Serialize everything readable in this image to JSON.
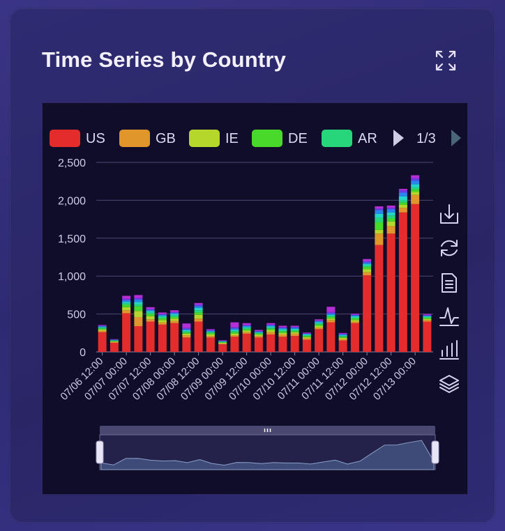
{
  "card": {
    "title": "Time Series by Country",
    "expand_icon": "expand-arrows-icon"
  },
  "legend": {
    "page": "1/3",
    "prev_icon": "caret-left-icon",
    "next_icon": "caret-right-icon"
  },
  "toolbox": [
    {
      "name": "save-image-icon"
    },
    {
      "name": "restore-icon"
    },
    {
      "name": "data-view-icon"
    },
    {
      "name": "line-chart-icon"
    },
    {
      "name": "bar-chart-icon"
    },
    {
      "name": "stack-icon"
    }
  ],
  "colors": {
    "US": "#e52c2c",
    "GB": "#e0962a",
    "IE": "#b5d62a",
    "DE": "#49d92a",
    "AR": "#27d67a",
    "C6": "#22d6c8",
    "C7": "#2a86e8",
    "C8": "#6a3de8",
    "C9": "#b52fd6"
  },
  "chart_data": {
    "type": "bar",
    "stacked": true,
    "title": "",
    "xlabel": "",
    "ylabel": "",
    "ylim": [
      0,
      2500
    ],
    "yticks": [
      "0",
      "500",
      "1,000",
      "1,500",
      "2,000",
      "2,500"
    ],
    "grid": true,
    "legend_position": "top",
    "xtick_labels": [
      "07/06 12:00",
      "07/07 00:00",
      "07/07 12:00",
      "07/08 00:00",
      "07/08 12:00",
      "07/09 00:00",
      "07/09 12:00",
      "07/10 00:00",
      "07/10 12:00",
      "07/11 00:00",
      "07/11 12:00",
      "07/12 00:00",
      "07/12 12:00",
      "07/13 00:00"
    ],
    "categories": [
      "07/06 12:00",
      "07/06 18:00",
      "07/07 00:00",
      "07/07 06:00",
      "07/07 12:00",
      "07/07 18:00",
      "07/08 00:00",
      "07/08 06:00",
      "07/08 12:00",
      "07/08 18:00",
      "07/09 00:00",
      "07/09 06:00",
      "07/09 12:00",
      "07/09 18:00",
      "07/10 00:00",
      "07/10 06:00",
      "07/10 12:00",
      "07/10 18:00",
      "07/11 00:00",
      "07/11 06:00",
      "07/11 12:00",
      "07/11 18:00",
      "07/12 00:00",
      "07/12 06:00",
      "07/12 12:00",
      "07/12 18:00",
      "07/13 00:00",
      "07/13 06:00"
    ],
    "series": [
      {
        "name": "US",
        "values": [
          260,
          120,
          510,
          340,
          400,
          360,
          380,
          190,
          400,
          190,
          100,
          200,
          240,
          190,
          230,
          200,
          210,
          160,
          300,
          390,
          150,
          380,
          1010,
          1410,
          1560,
          1840,
          1950,
          400
        ]
      },
      {
        "name": "GB",
        "values": [
          20,
          10,
          40,
          120,
          30,
          30,
          30,
          30,
          40,
          20,
          10,
          20,
          20,
          20,
          30,
          30,
          30,
          20,
          20,
          30,
          20,
          20,
          40,
          150,
          100,
          60,
          120,
          20
        ]
      },
      {
        "name": "IE",
        "values": [
          15,
          8,
          40,
          80,
          40,
          30,
          30,
          20,
          50,
          20,
          10,
          20,
          20,
          15,
          25,
          20,
          20,
          15,
          20,
          20,
          15,
          20,
          40,
          50,
          60,
          40,
          40,
          15
        ]
      },
      {
        "name": "DE",
        "values": [
          12,
          6,
          30,
          60,
          30,
          20,
          20,
          15,
          30,
          20,
          8,
          20,
          20,
          15,
          20,
          20,
          15,
          15,
          20,
          20,
          15,
          20,
          30,
          100,
          40,
          30,
          30,
          15
        ]
      },
      {
        "name": "AR",
        "values": [
          12,
          6,
          20,
          30,
          20,
          20,
          20,
          15,
          30,
          10,
          6,
          15,
          15,
          10,
          15,
          15,
          15,
          10,
          15,
          15,
          10,
          15,
          20,
          60,
          40,
          30,
          30,
          10
        ]
      },
      {
        "values": [
          10,
          5,
          20,
          30,
          20,
          15,
          20,
          15,
          30,
          10,
          5,
          15,
          15,
          10,
          15,
          15,
          15,
          10,
          15,
          15,
          10,
          15,
          20,
          50,
          40,
          50,
          40,
          10
        ]
      },
      {
        "values": [
          10,
          5,
          20,
          30,
          15,
          15,
          15,
          15,
          25,
          10,
          5,
          20,
          15,
          10,
          15,
          15,
          15,
          10,
          15,
          15,
          10,
          15,
          20,
          50,
          40,
          50,
          50,
          10
        ]
      },
      {
        "values": [
          8,
          4,
          20,
          20,
          10,
          10,
          10,
          15,
          20,
          10,
          5,
          15,
          10,
          5,
          10,
          10,
          10,
          5,
          10,
          20,
          10,
          10,
          15,
          20,
          20,
          30,
          30,
          8
        ]
      },
      {
        "values": [
          8,
          4,
          40,
          40,
          25,
          20,
          25,
          60,
          20,
          10,
          6,
          65,
          25,
          15,
          20,
          20,
          15,
          10,
          15,
          70,
          10,
          10,
          30,
          30,
          30,
          20,
          40,
          12
        ]
      }
    ]
  }
}
